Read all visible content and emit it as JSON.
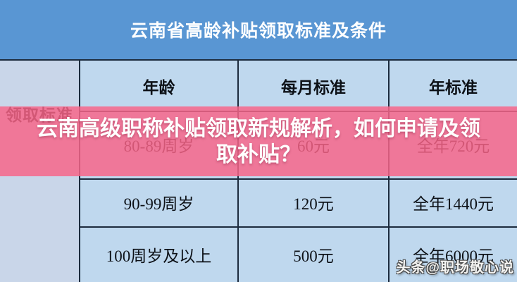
{
  "title_bar": {
    "title": "云南省高龄补贴领取标准及条件"
  },
  "banner": {
    "line1": "云南高级职称补贴领取新规解析，如何申请及领",
    "line2": "取补贴？"
  },
  "table": {
    "side_label": "领取标准",
    "headers": [
      "年龄",
      "每月标准",
      "年标准"
    ],
    "rows": [
      [
        "80-89周岁",
        "60元",
        "全年720元"
      ],
      [
        "90-99周岁",
        "120元",
        "全年1440元"
      ],
      [
        "100周岁及以上",
        "500元",
        "全年6000元"
      ]
    ]
  },
  "watermark": {
    "text": "头条@职场敬心说"
  },
  "colors": {
    "title_bar_blue": "#5996d3",
    "cell_blue": "#bfd8ee",
    "side_column_blue": "#c9d6e9",
    "banner_pink": "#ee7e9d",
    "border_navy": "#1c2b3d",
    "title_text": "#ffffff",
    "banner_text": "#ffffff",
    "table_text": "#0d1117"
  }
}
